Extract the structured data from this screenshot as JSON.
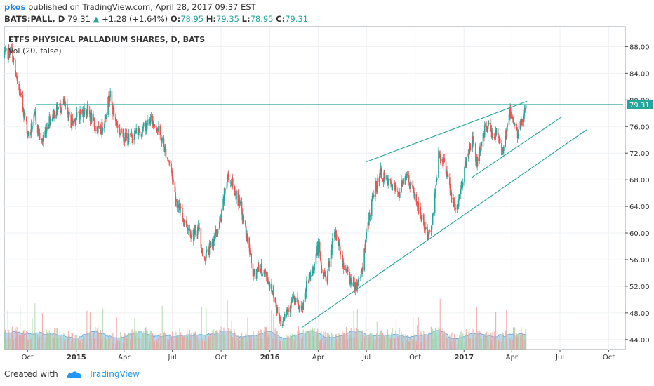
{
  "header": {
    "user": "pkos",
    "published_text": "published on TradingView.com, April 28, 2017 09:37 EST",
    "symbol": "BATS:PALL, D",
    "last": "79.31",
    "change": "+1.28 (+1.64%)",
    "o_label": "O:",
    "o_value": "78.95",
    "h_label": "H:",
    "h_value": "79.35",
    "l_label": "L:",
    "l_value": "78.95",
    "c_label": "C:",
    "c_value": "79.31"
  },
  "footer": {
    "created_with": "Created with",
    "brand": "TradingView"
  },
  "chart_data": {
    "type": "candlestick",
    "title": "ETFS PHYSICAL PALLADIUM SHARES, D, BATS",
    "indicator_label": "Vol (20, false)",
    "last_price_label": "79.31",
    "ylim": [
      42.5,
      91
    ],
    "y_ticks": [
      44,
      48,
      52,
      56,
      60,
      64,
      68,
      72,
      76,
      80,
      84,
      88
    ],
    "y_tick_labels": [
      "44.00",
      "48.00",
      "52.00",
      "56.00",
      "60.00",
      "64.00",
      "68.00",
      "72.00",
      "76.00",
      "80.00",
      "84.00",
      "88.00"
    ],
    "x_ticks": [
      {
        "label": "Oct",
        "date": "2014-10-01",
        "bold": false
      },
      {
        "label": "2015",
        "date": "2015-01-01",
        "bold": true
      },
      {
        "label": "Apr",
        "date": "2015-04-01",
        "bold": false
      },
      {
        "label": "Jul",
        "date": "2015-07-01",
        "bold": false
      },
      {
        "label": "Oct",
        "date": "2015-10-01",
        "bold": false
      },
      {
        "label": "2016",
        "date": "2016-01-01",
        "bold": true
      },
      {
        "label": "Apr",
        "date": "2016-04-01",
        "bold": false
      },
      {
        "label": "Jul",
        "date": "2016-07-01",
        "bold": false
      },
      {
        "label": "Oct",
        "date": "2016-10-01",
        "bold": false
      },
      {
        "label": "2017",
        "date": "2017-01-01",
        "bold": true
      },
      {
        "label": "Apr",
        "date": "2017-04-01",
        "bold": false
      },
      {
        "label": "Jul",
        "date": "2017-07-01",
        "bold": false
      },
      {
        "label": "Oct",
        "date": "2017-10-01",
        "bold": false
      }
    ],
    "x_start": "2014-08-18",
    "x_end": "2017-11-01",
    "price_path": [
      [
        "2014-08-18",
        86.5
      ],
      [
        "2014-09-01",
        87.5
      ],
      [
        "2014-09-10",
        83.0
      ],
      [
        "2014-09-22",
        79.0
      ],
      [
        "2014-10-03",
        74.5
      ],
      [
        "2014-10-15",
        77.5
      ],
      [
        "2014-10-27",
        73.5
      ],
      [
        "2014-11-10",
        77.0
      ],
      [
        "2014-11-25",
        78.5
      ],
      [
        "2014-12-08",
        79.5
      ],
      [
        "2014-12-22",
        76.5
      ],
      [
        "2015-01-08",
        78.0
      ],
      [
        "2015-01-22",
        78.5
      ],
      [
        "2015-02-05",
        76.0
      ],
      [
        "2015-02-15",
        75.0
      ],
      [
        "2015-02-26",
        78.0
      ],
      [
        "2015-03-05",
        81.0
      ],
      [
        "2015-03-12",
        78.0
      ],
      [
        "2015-03-25",
        75.0
      ],
      [
        "2015-04-08",
        74.0
      ],
      [
        "2015-04-20",
        75.0
      ],
      [
        "2015-05-05",
        75.5
      ],
      [
        "2015-05-20",
        77.0
      ],
      [
        "2015-06-02",
        76.0
      ],
      [
        "2015-06-15",
        73.0
      ],
      [
        "2015-06-28",
        70.0
      ],
      [
        "2015-07-08",
        65.0
      ],
      [
        "2015-07-20",
        62.5
      ],
      [
        "2015-07-30",
        61.0
      ],
      [
        "2015-08-10",
        59.5
      ],
      [
        "2015-08-20",
        61.0
      ],
      [
        "2015-08-28",
        56.0
      ],
      [
        "2015-09-08",
        57.5
      ],
      [
        "2015-09-20",
        59.5
      ],
      [
        "2015-10-01",
        62.0
      ],
      [
        "2015-10-08",
        66.5
      ],
      [
        "2015-10-14",
        68.5
      ],
      [
        "2015-10-22",
        67.5
      ],
      [
        "2015-11-02",
        65.0
      ],
      [
        "2015-11-12",
        62.0
      ],
      [
        "2015-11-22",
        58.0
      ],
      [
        "2015-12-01",
        53.5
      ],
      [
        "2015-12-10",
        55.0
      ],
      [
        "2015-12-22",
        54.0
      ],
      [
        "2016-01-05",
        51.5
      ],
      [
        "2016-01-15",
        48.5
      ],
      [
        "2016-01-22",
        46.5
      ],
      [
        "2016-02-05",
        49.0
      ],
      [
        "2016-02-15",
        50.0
      ],
      [
        "2016-03-01",
        48.0
      ],
      [
        "2016-03-10",
        52.0
      ],
      [
        "2016-03-22",
        54.5
      ],
      [
        "2016-04-01",
        58.0
      ],
      [
        "2016-04-08",
        54.0
      ],
      [
        "2016-04-18",
        53.5
      ],
      [
        "2016-04-28",
        58.5
      ],
      [
        "2016-05-05",
        60.0
      ],
      [
        "2016-05-18",
        55.5
      ],
      [
        "2016-06-01",
        53.0
      ],
      [
        "2016-06-12",
        52.0
      ],
      [
        "2016-06-24",
        55.0
      ],
      [
        "2016-07-05",
        62.0
      ],
      [
        "2016-07-15",
        66.0
      ],
      [
        "2016-07-28",
        69.0
      ],
      [
        "2016-08-05",
        68.0
      ],
      [
        "2016-08-18",
        67.0
      ],
      [
        "2016-09-01",
        66.0
      ],
      [
        "2016-09-12",
        69.0
      ],
      [
        "2016-09-28",
        66.0
      ],
      [
        "2016-10-10",
        63.0
      ],
      [
        "2016-10-22",
        60.0
      ],
      [
        "2016-10-28",
        59.5
      ],
      [
        "2016-11-05",
        63.5
      ],
      [
        "2016-11-14",
        72.0
      ],
      [
        "2016-11-22",
        71.0
      ],
      [
        "2016-12-01",
        69.0
      ],
      [
        "2016-12-08",
        65.0
      ],
      [
        "2016-12-18",
        63.5
      ],
      [
        "2016-12-28",
        67.5
      ],
      [
        "2017-01-08",
        72.0
      ],
      [
        "2017-01-18",
        74.0
      ],
      [
        "2017-01-25",
        70.5
      ],
      [
        "2017-02-05",
        74.5
      ],
      [
        "2017-02-15",
        76.5
      ],
      [
        "2017-02-24",
        74.5
      ],
      [
        "2017-03-05",
        75.0
      ],
      [
        "2017-03-13",
        72.0
      ],
      [
        "2017-03-20",
        74.5
      ],
      [
        "2017-03-28",
        78.0
      ],
      [
        "2017-04-05",
        77.0
      ],
      [
        "2017-04-13",
        74.5
      ],
      [
        "2017-04-20",
        77.0
      ],
      [
        "2017-04-28",
        79.31
      ]
    ],
    "volume_scale_max": 30,
    "trendlines": [
      {
        "name": "horizontal-resistance",
        "points": [
          [
            "2014-10-18",
            79.31
          ],
          [
            "2017-10-28",
            79.31
          ]
        ]
      },
      {
        "name": "upper-channel-line",
        "points": [
          [
            "2016-07-01",
            70.7
          ],
          [
            "2017-04-30",
            79.8
          ]
        ]
      },
      {
        "name": "lower-channel-line-short",
        "points": [
          [
            "2017-01-15",
            68.3
          ],
          [
            "2017-07-05",
            77.5
          ]
        ]
      },
      {
        "name": "lower-channel-line-long",
        "points": [
          [
            "2016-03-01",
            45.8
          ],
          [
            "2017-08-20",
            75.5
          ]
        ]
      }
    ],
    "colors": {
      "up": "#26a69a",
      "down": "#ef5350",
      "trendline": "#26a69a",
      "volume_area": "#80bde6",
      "volume_up": "#a5d6a7",
      "volume_down": "#ef9a9a",
      "grid": "#eef0f3",
      "axis": "#555555",
      "last_price_bg": "#26a69a"
    },
    "grid": true
  }
}
